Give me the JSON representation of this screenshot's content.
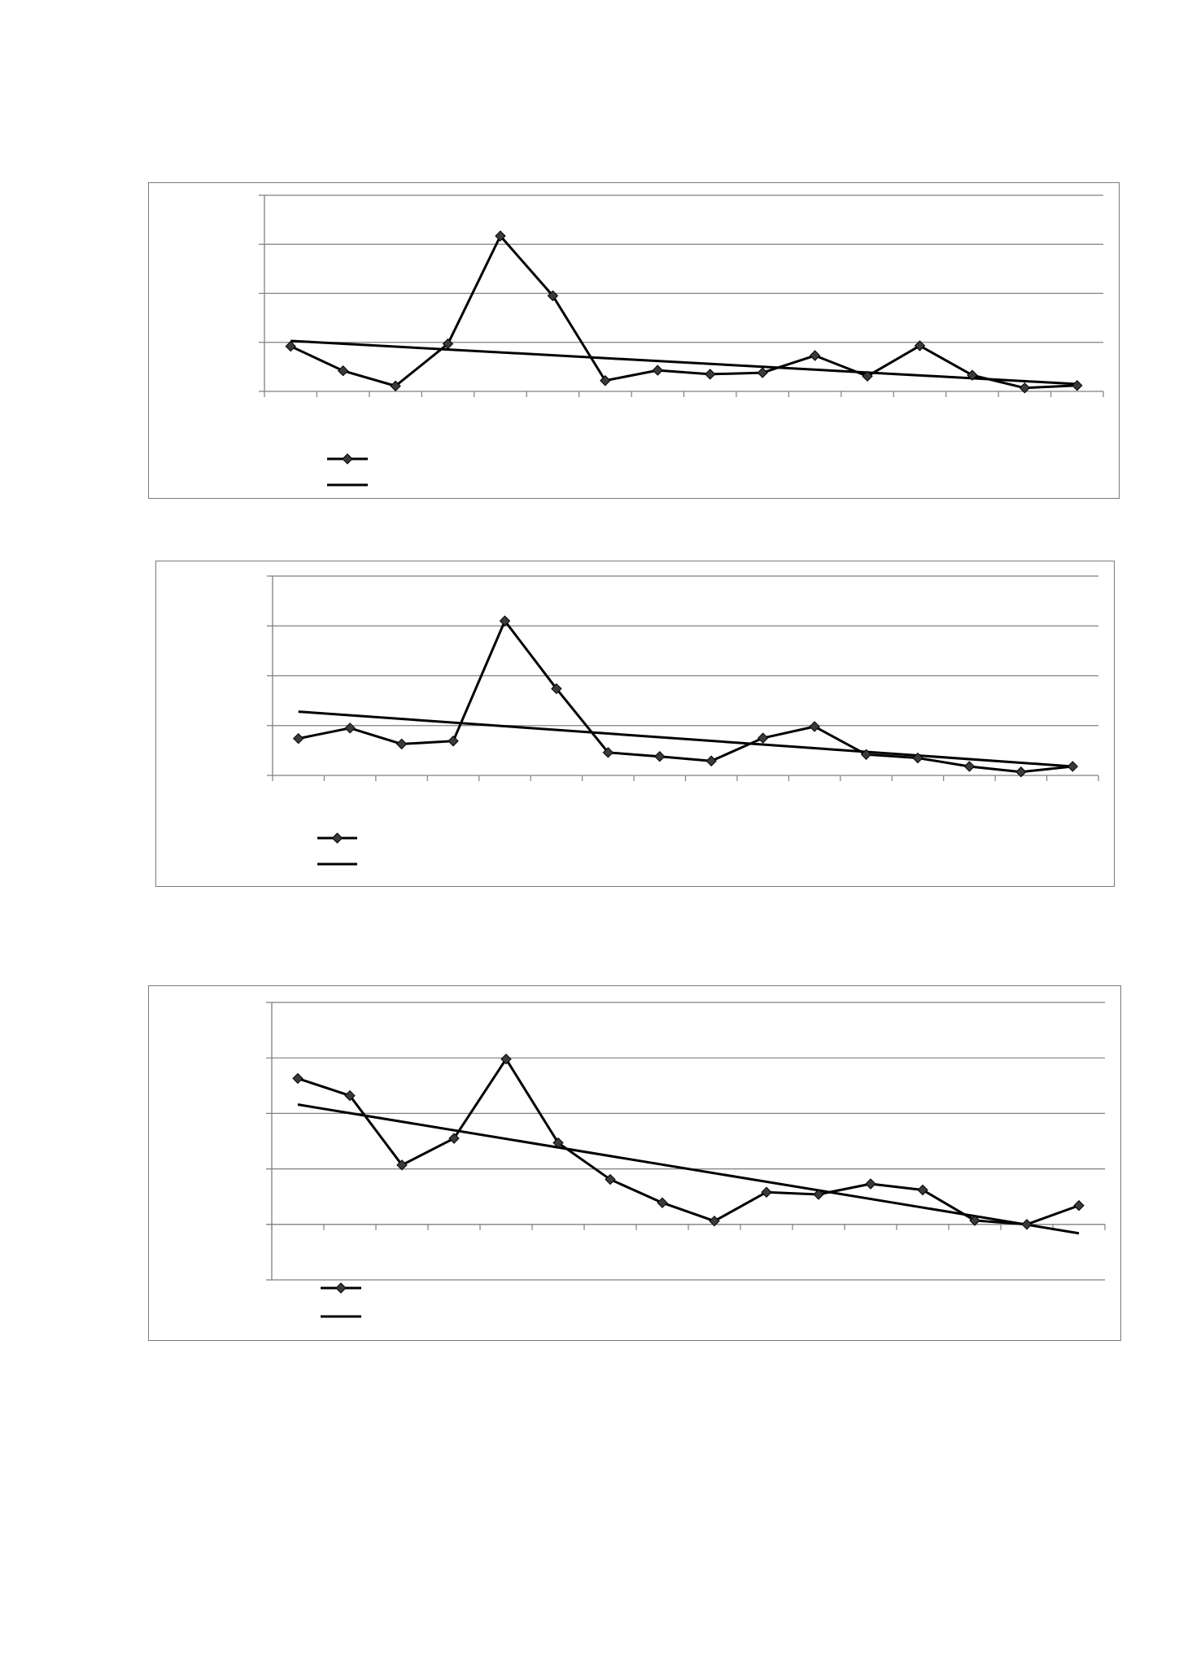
{
  "colors": {
    "line": "#000000",
    "grid": "#7f7f7f",
    "frame": "#7a7a7a",
    "marker": "#3a3a3a"
  },
  "chart_data": [
    {
      "type": "line",
      "title": "",
      "xlabel": "",
      "ylabel": "",
      "ylim": [
        0,
        4
      ],
      "y_gridlines": [
        0,
        1,
        2,
        3,
        4
      ],
      "grid": true,
      "legend": "bottom-left",
      "x_slots": 16,
      "series": [
        {
          "values": [
            0.92,
            0.42,
            0.11,
            0.97,
            3.17,
            1.95,
            0.22,
            0.43,
            0.35,
            0.38,
            0.73,
            0.31,
            0.93,
            0.33,
            0.07,
            0.12
          ],
          "marker": "diamond"
        }
      ],
      "trendline": {
        "start": 1.03,
        "end": 0.15
      }
    },
    {
      "type": "line",
      "title": "",
      "xlabel": "",
      "ylabel": "",
      "ylim": [
        0,
        4
      ],
      "y_gridlines": [
        0,
        1,
        2,
        3,
        4
      ],
      "grid": true,
      "legend": "bottom-left",
      "x_slots": 16,
      "series": [
        {
          "values": [
            0.74,
            0.95,
            0.63,
            0.69,
            3.1,
            1.74,
            0.46,
            0.38,
            0.29,
            0.75,
            0.98,
            0.42,
            0.35,
            0.18,
            0.07,
            0.18
          ],
          "marker": "diamond"
        }
      ],
      "trendline": {
        "start": 1.28,
        "end": 0.18
      }
    },
    {
      "type": "line",
      "title": "",
      "xlabel": "",
      "ylabel": "",
      "ylim": [
        -1,
        4
      ],
      "y_gridlines": [
        -1,
        0,
        1,
        2,
        3,
        4
      ],
      "grid": true,
      "legend": "bottom-left",
      "x_slots": 16,
      "series": [
        {
          "values": [
            2.63,
            2.32,
            1.07,
            1.55,
            2.98,
            1.47,
            0.81,
            0.39,
            0.06,
            0.58,
            0.54,
            0.73,
            0.62,
            0.07,
            0.0,
            0.34
          ],
          "marker": "diamond"
        }
      ],
      "trendline": {
        "start": 2.16,
        "end": -0.16
      }
    }
  ]
}
